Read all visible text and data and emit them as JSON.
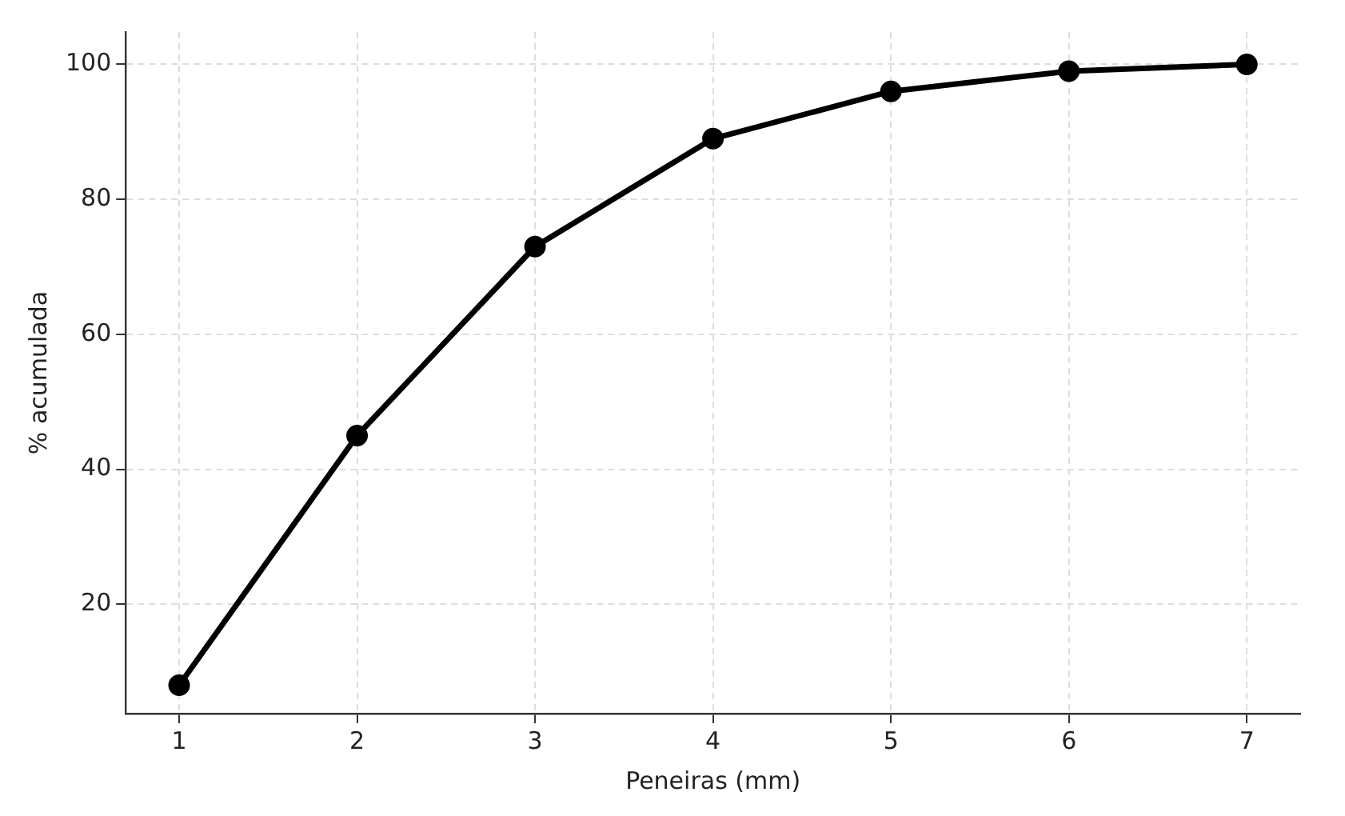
{
  "chart_data": {
    "type": "line",
    "xlabel": "Peneiras (mm)",
    "ylabel": "% acumulada",
    "x": [
      1,
      2,
      3,
      4,
      5,
      6,
      7
    ],
    "series": [
      {
        "color": "#000000",
        "values": [
          8,
          45,
          73,
          89,
          96,
          99,
          100
        ]
      }
    ],
    "xlim": [
      0.7,
      7.3
    ],
    "xticks": [
      1,
      2,
      3,
      4,
      5,
      6,
      7
    ],
    "ylim": [
      3.8,
      104.8
    ],
    "yticks": [
      20,
      40,
      60,
      80,
      100
    ],
    "grid": true,
    "marker": "circle",
    "line_style": "solid",
    "legend": false
  }
}
